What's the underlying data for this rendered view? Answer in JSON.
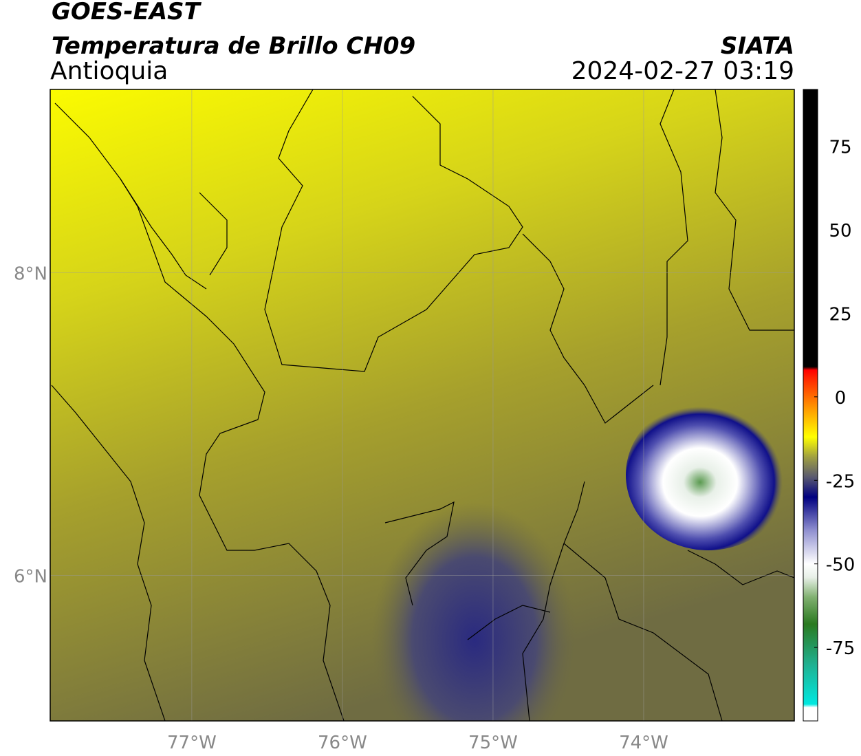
{
  "header": {
    "title": "GOES-EAST",
    "subtitle": "Temperatura de Brillo CH09",
    "region": "Antioquia",
    "source": "SIATA",
    "datetime": "2024-02-27 03:19"
  },
  "map": {
    "xlim": [
      -77.94,
      -73.0
    ],
    "ylim": [
      5.04,
      9.21
    ],
    "xticks": [
      {
        "value": -77,
        "label": "77°W"
      },
      {
        "value": -76,
        "label": "76°W"
      },
      {
        "value": -75,
        "label": "75°W"
      },
      {
        "value": -74,
        "label": "74°W"
      }
    ],
    "yticks": [
      {
        "value": 8,
        "label": "8°N"
      },
      {
        "value": 6,
        "label": "6°N"
      }
    ],
    "grid": true
  },
  "colorbar": {
    "lim": [
      -97,
      92
    ],
    "ticks": [
      75,
      50,
      25,
      0,
      -25,
      -50,
      -75
    ],
    "stops": [
      {
        "value": -97,
        "color": "#ffffff"
      },
      {
        "value": -93,
        "color": "#ffffff"
      },
      {
        "value": -92,
        "color": "#00e8e0"
      },
      {
        "value": -80,
        "color": "#20b090"
      },
      {
        "value": -68,
        "color": "#2a7a20"
      },
      {
        "value": -60,
        "color": "#80b070"
      },
      {
        "value": -54,
        "color": "#e8f0e8"
      },
      {
        "value": -50,
        "color": "#ffffff"
      },
      {
        "value": -40,
        "color": "#9090d0"
      },
      {
        "value": -30,
        "color": "#000080"
      },
      {
        "value": -24,
        "color": "#5a5a70"
      },
      {
        "value": -18,
        "color": "#a0a040"
      },
      {
        "value": -12,
        "color": "#ffff00"
      },
      {
        "value": -4,
        "color": "#ffa000"
      },
      {
        "value": 6,
        "color": "#ff2000"
      },
      {
        "value": 8,
        "color": "#ff0000"
      },
      {
        "value": 9,
        "color": "#000000"
      },
      {
        "value": 92,
        "color": "#000000"
      }
    ]
  }
}
